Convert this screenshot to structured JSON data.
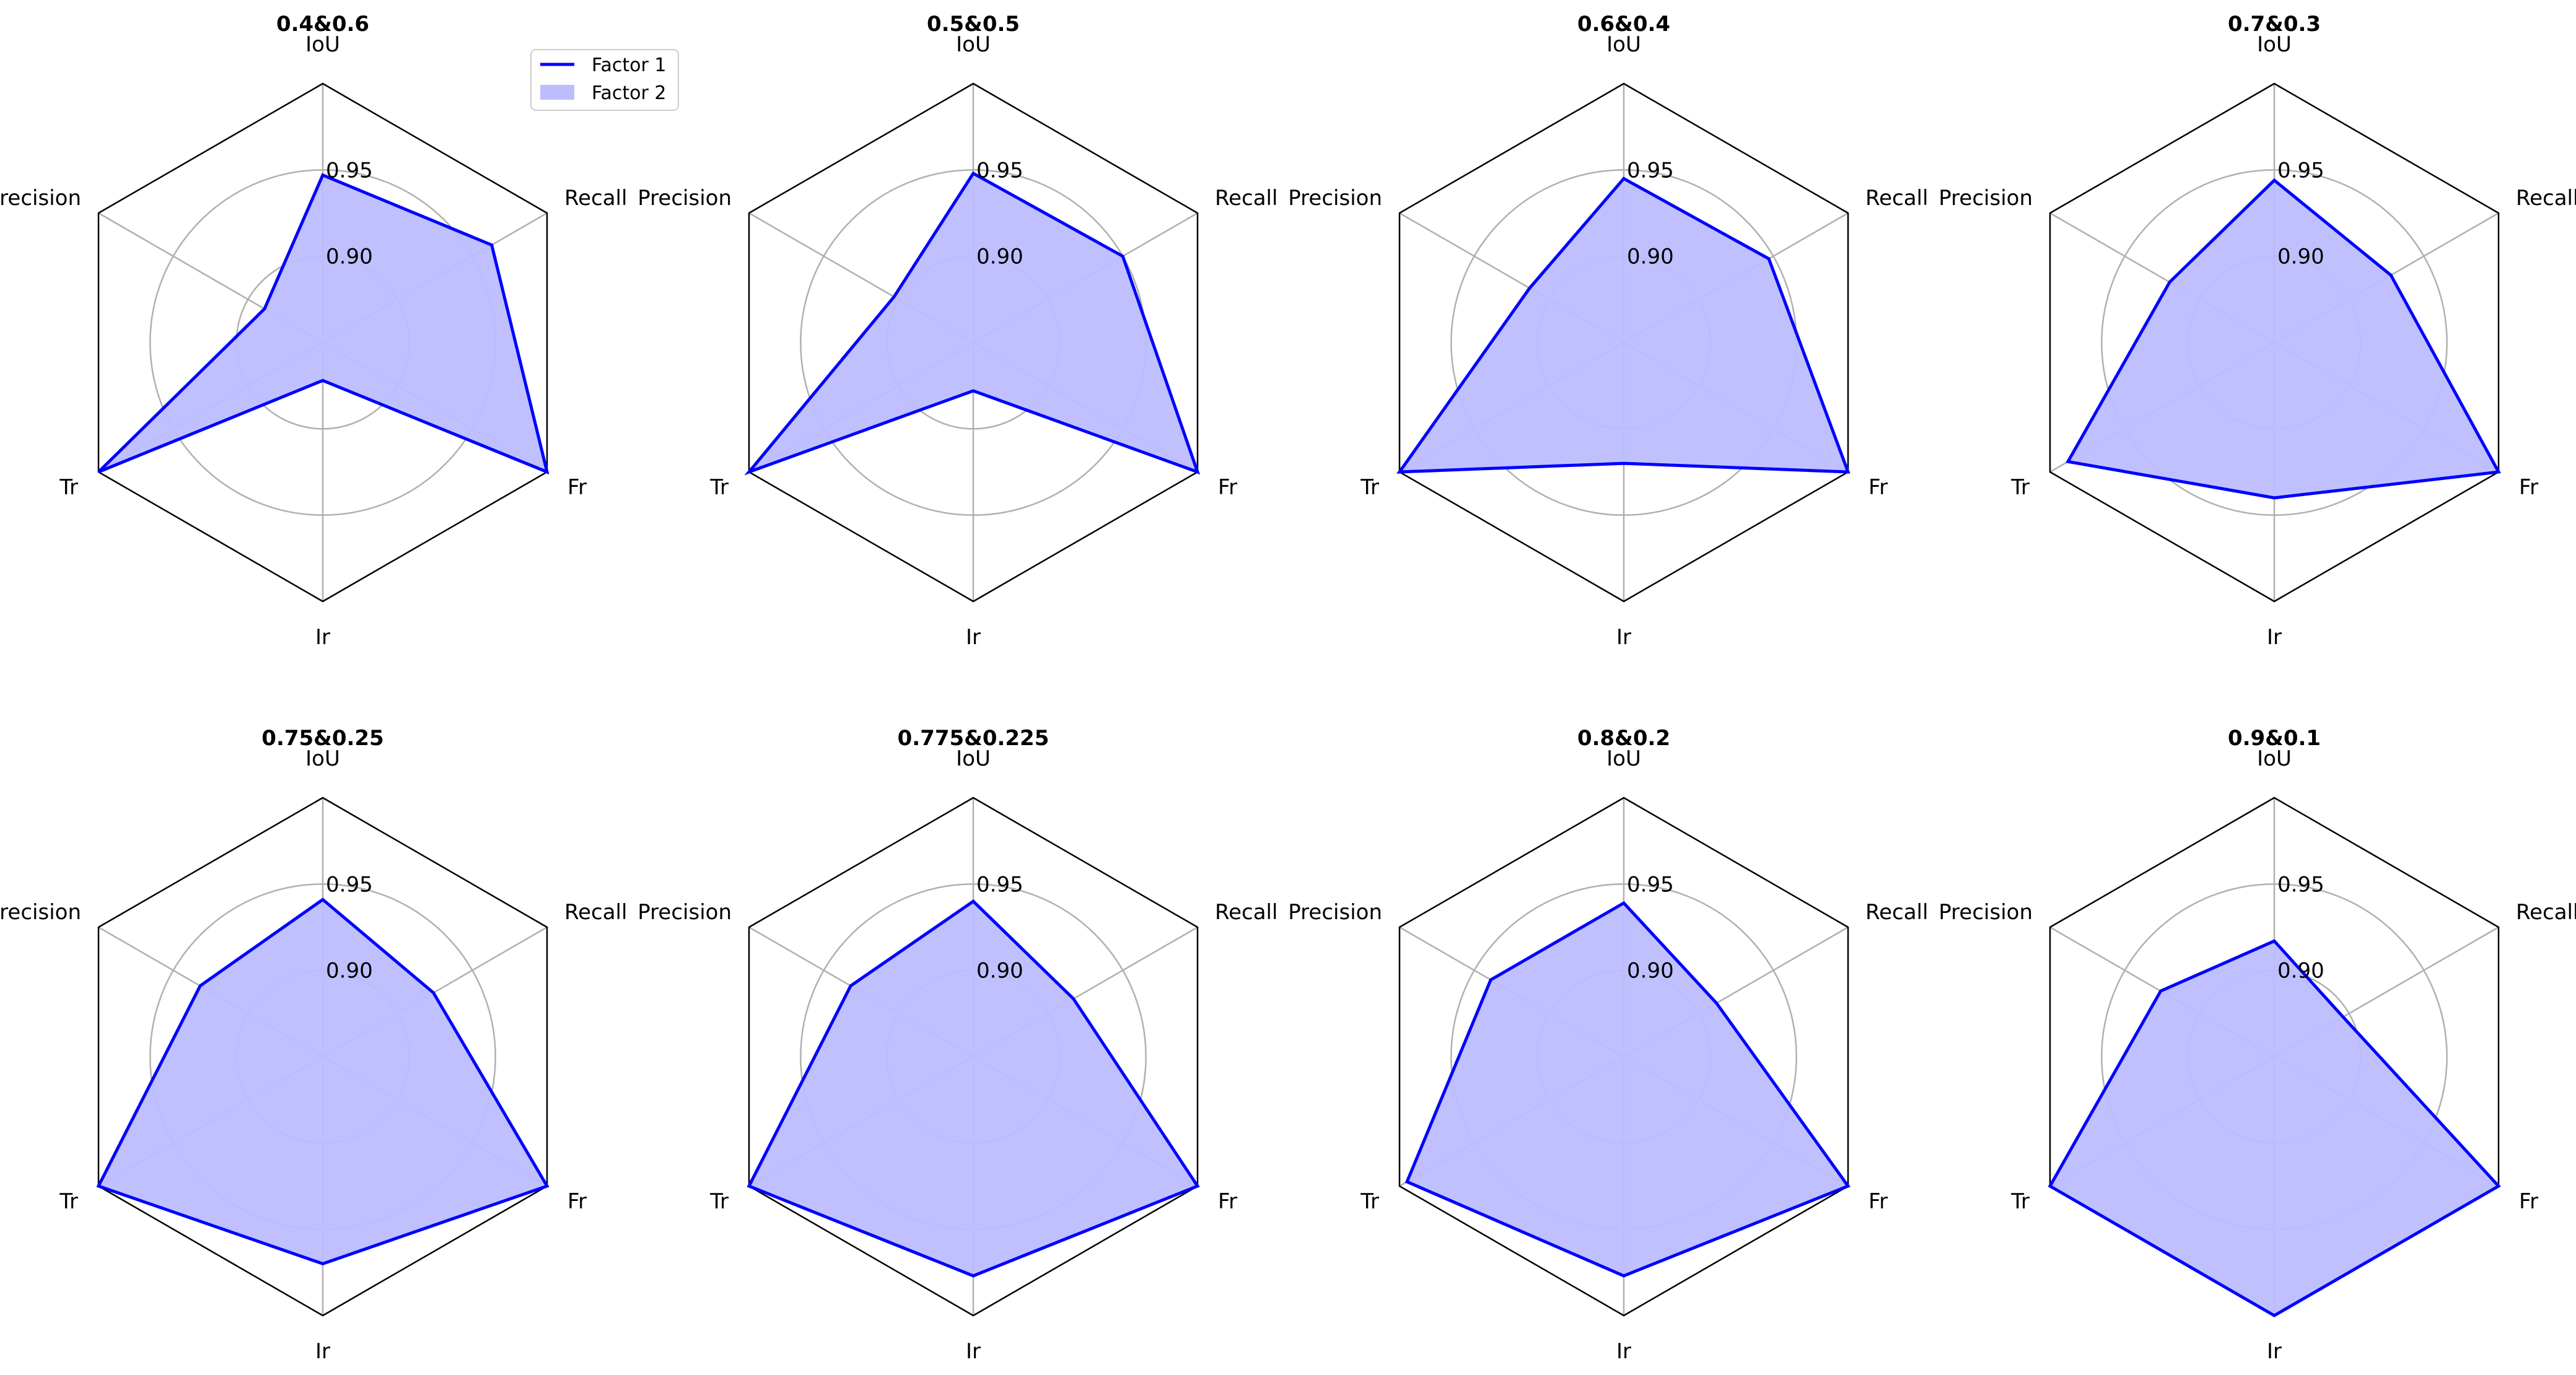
{
  "chart_data": {
    "type": "radar",
    "axes": [
      "IoU",
      "Recall",
      "Fr",
      "Ir",
      "Tr",
      "Precision"
    ],
    "range": [
      0.85,
      1.0
    ],
    "rings": [
      0.9,
      0.95
    ],
    "ring_labels": [
      "0.90",
      "0.95"
    ],
    "legend": {
      "position": "top-right of first panel",
      "entries": [
        "Factor 1",
        "Factor 2"
      ]
    },
    "colors": {
      "line": "#0000ff",
      "fill": "#bdbdff",
      "grid": "#b0b0b0",
      "frame": "#000000"
    },
    "panels": [
      {
        "title": "0.4&0.6",
        "values": [
          0.947,
          0.963,
          1.0,
          0.872,
          1.0,
          0.889
        ]
      },
      {
        "title": "0.5&0.5",
        "values": [
          0.948,
          0.95,
          1.0,
          0.878,
          1.0,
          0.903
        ]
      },
      {
        "title": "0.6&0.4",
        "values": [
          0.945,
          0.947,
          1.0,
          0.92,
          1.0,
          0.913
        ]
      },
      {
        "title": "0.7&0.3",
        "values": [
          0.944,
          0.928,
          1.0,
          0.94,
          0.988,
          0.92
        ]
      },
      {
        "title": "0.75&0.25",
        "values": [
          0.941,
          0.924,
          1.0,
          0.97,
          1.0,
          0.932
        ]
      },
      {
        "title": "0.775&0.225",
        "values": [
          0.94,
          0.917,
          1.0,
          0.977,
          1.0,
          0.932
        ]
      },
      {
        "title": "0.8&0.2",
        "values": [
          0.939,
          0.912,
          1.0,
          0.977,
          0.995,
          0.939
        ]
      },
      {
        "title": "0.9&0.1",
        "values": [
          0.917,
          0.896,
          1.0,
          1.0,
          1.0,
          0.926
        ]
      }
    ]
  }
}
